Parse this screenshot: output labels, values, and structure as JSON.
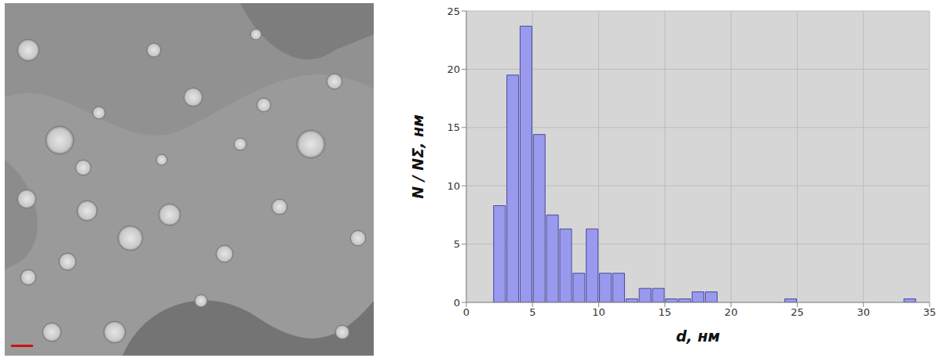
{
  "chart_data": {
    "type": "histogram",
    "bins": [
      2,
      3,
      4,
      5,
      6,
      7,
      8,
      9,
      10,
      11,
      12,
      13,
      14,
      15,
      16,
      17,
      18,
      19,
      20,
      21,
      22,
      23,
      24,
      25,
      26,
      27,
      28,
      29,
      30,
      31,
      32,
      33,
      34
    ],
    "values": [
      8.3,
      19.5,
      23.7,
      14.4,
      7.5,
      6.3,
      2.5,
      6.3,
      2.5,
      2.5,
      0.3,
      1.2,
      1.2,
      0.3,
      0.3,
      0.9,
      0.9,
      0,
      0,
      0,
      0,
      0,
      0.3,
      0,
      0,
      0,
      0,
      0,
      0,
      0,
      0,
      0.3
    ],
    "color": "#9999ee",
    "x_label": "d, нм",
    "y_label": "N / NΣ, нм",
    "xlim": [
      0,
      35
    ],
    "xticks": [
      0,
      5,
      10,
      15,
      20,
      25,
      30,
      35
    ],
    "ylim": [
      0,
      25
    ],
    "yticks": [
      0,
      5,
      10,
      15,
      20,
      25
    ],
    "grid": true
  }
}
